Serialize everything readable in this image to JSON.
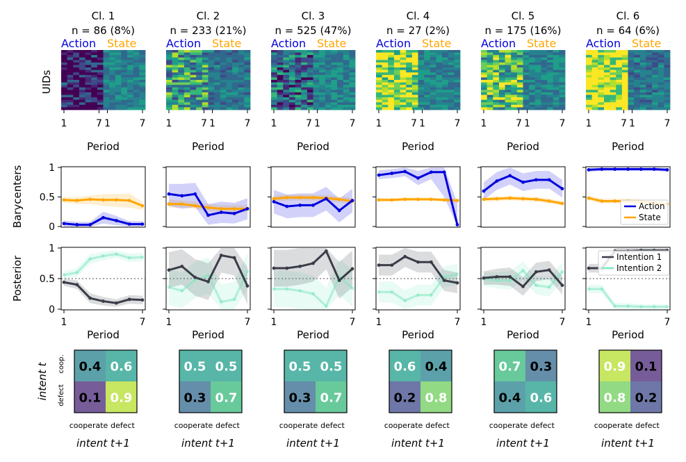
{
  "colors": {
    "action": "#0000dd",
    "state": "#ffa500",
    "intention1": "#3a3d48",
    "intention2": "#7de8c0",
    "viridis": [
      "#440154",
      "#482777",
      "#3e4a89",
      "#31688e",
      "#26828e",
      "#1f9e89",
      "#35b779",
      "#6dcd59",
      "#b4de2c",
      "#fde725"
    ]
  },
  "labels": {
    "uids": "UIDs",
    "barycenters": "Barycenters",
    "posterior": "Posterior",
    "period": "Period",
    "intent_t": "intent t",
    "intent_t1": "intent t+1",
    "row_cooperate": "coop.",
    "row_defect": "defect",
    "col_cooperate": "cooperate",
    "col_defect": "defect",
    "action_header": "Action",
    "state_header": "State"
  },
  "chart_data": {
    "type": "line",
    "clusters": [
      {
        "title": "Cl. 1",
        "n_label": "n = 86 (8%)",
        "heatmap_action_mean": 0.06,
        "heatmap_state_mean": 0.45,
        "barycenters": {
          "action": [
            0.05,
            0.03,
            0.03,
            0.15,
            0.1,
            0.04,
            0.04
          ],
          "action_band": [
            [
              0.0,
              0.1
            ],
            [
              0.0,
              0.08
            ],
            [
              0.0,
              0.08
            ],
            [
              0.05,
              0.25
            ],
            [
              0.02,
              0.18
            ],
            [
              0.0,
              0.09
            ],
            [
              0.0,
              0.09
            ]
          ],
          "state": [
            0.45,
            0.44,
            0.46,
            0.45,
            0.45,
            0.44,
            0.35
          ],
          "state_band": [
            [
              0.4,
              0.5
            ],
            [
              0.38,
              0.5
            ],
            [
              0.38,
              0.52
            ],
            [
              0.35,
              0.55
            ],
            [
              0.33,
              0.55
            ],
            [
              0.32,
              0.56
            ],
            [
              0.28,
              0.42
            ]
          ]
        },
        "posterior": {
          "i1": [
            0.44,
            0.4,
            0.18,
            0.13,
            0.1,
            0.16,
            0.15
          ],
          "i1_band": [
            [
              0.38,
              0.5
            ],
            [
              0.33,
              0.47
            ],
            [
              0.1,
              0.26
            ],
            [
              0.06,
              0.2
            ],
            [
              0.04,
              0.16
            ],
            [
              0.09,
              0.23
            ],
            [
              0.08,
              0.22
            ]
          ],
          "i2": [
            0.56,
            0.6,
            0.82,
            0.87,
            0.9,
            0.84,
            0.85
          ],
          "i2_band": [
            [
              0.5,
              0.62
            ],
            [
              0.53,
              0.67
            ],
            [
              0.74,
              0.9
            ],
            [
              0.8,
              0.94
            ],
            [
              0.84,
              0.96
            ],
            [
              0.77,
              0.91
            ],
            [
              0.78,
              0.92
            ]
          ]
        },
        "matrix": [
          [
            0.4,
            0.6
          ],
          [
            0.1,
            0.9
          ]
        ]
      },
      {
        "title": "Cl. 2",
        "n_label": "n = 233 (21%)",
        "heatmap_action_mean": 0.55,
        "heatmap_state_mean": 0.4,
        "barycenters": {
          "action": [
            0.55,
            0.52,
            0.55,
            0.19,
            0.24,
            0.22,
            0.3
          ],
          "action_band": [
            [
              0.35,
              0.72
            ],
            [
              0.3,
              0.72
            ],
            [
              0.33,
              0.74
            ],
            [
              0.03,
              0.38
            ],
            [
              0.06,
              0.42
            ],
            [
              0.05,
              0.4
            ],
            [
              0.12,
              0.48
            ]
          ],
          "state": [
            0.38,
            0.38,
            0.35,
            0.32,
            0.3,
            0.3,
            0.3
          ],
          "state_band": [
            [
              0.32,
              0.45
            ],
            [
              0.32,
              0.44
            ],
            [
              0.3,
              0.42
            ],
            [
              0.26,
              0.38
            ],
            [
              0.24,
              0.36
            ],
            [
              0.24,
              0.36
            ],
            [
              0.24,
              0.36
            ]
          ]
        },
        "posterior": {
          "i1": [
            0.64,
            0.7,
            0.52,
            0.45,
            0.88,
            0.84,
            0.38
          ],
          "i1_band": [
            [
              0.35,
              0.93
            ],
            [
              0.4,
              0.98
            ],
            [
              0.22,
              0.82
            ],
            [
              0.15,
              0.75
            ],
            [
              0.6,
              1.0
            ],
            [
              0.55,
              1.0
            ],
            [
              0.08,
              0.68
            ]
          ],
          "i2": [
            0.36,
            0.3,
            0.48,
            0.55,
            0.12,
            0.16,
            0.62
          ],
          "i2_band": [
            [
              0.07,
              0.65
            ],
            [
              0.02,
              0.6
            ],
            [
              0.18,
              0.78
            ],
            [
              0.25,
              0.85
            ],
            [
              0.0,
              0.4
            ],
            [
              0.0,
              0.45
            ],
            [
              0.32,
              0.92
            ]
          ]
        },
        "matrix": [
          [
            0.5,
            0.5
          ],
          [
            0.3,
            0.7
          ]
        ]
      },
      {
        "title": "Cl. 3",
        "n_label": "n = 525 (47%)",
        "heatmap_action_mean": 0.35,
        "heatmap_state_mean": 0.45,
        "barycenters": {
          "action": [
            0.42,
            0.34,
            0.36,
            0.36,
            0.47,
            0.27,
            0.44
          ],
          "action_band": [
            [
              0.22,
              0.62
            ],
            [
              0.14,
              0.54
            ],
            [
              0.16,
              0.56
            ],
            [
              0.16,
              0.56
            ],
            [
              0.27,
              0.67
            ],
            [
              0.07,
              0.47
            ],
            [
              0.24,
              0.64
            ]
          ],
          "state": [
            0.47,
            0.49,
            0.49,
            0.49,
            0.48,
            0.46,
            0.43
          ],
          "state_band": [
            [
              0.42,
              0.52
            ],
            [
              0.44,
              0.54
            ],
            [
              0.44,
              0.54
            ],
            [
              0.44,
              0.54
            ],
            [
              0.43,
              0.53
            ],
            [
              0.41,
              0.51
            ],
            [
              0.38,
              0.48
            ]
          ]
        },
        "posterior": {
          "i1": [
            0.67,
            0.67,
            0.7,
            0.75,
            0.95,
            0.47,
            0.66
          ],
          "i1_band": [
            [
              0.37,
              0.97
            ],
            [
              0.37,
              0.97
            ],
            [
              0.4,
              1.0
            ],
            [
              0.45,
              1.0
            ],
            [
              0.65,
              1.0
            ],
            [
              0.17,
              0.77
            ],
            [
              0.36,
              0.96
            ]
          ],
          "i2": [
            0.33,
            0.33,
            0.3,
            0.25,
            0.05,
            0.53,
            0.34
          ],
          "i2_band": [
            [
              0.03,
              0.63
            ],
            [
              0.03,
              0.63
            ],
            [
              0.0,
              0.6
            ],
            [
              0.0,
              0.55
            ],
            [
              0.0,
              0.35
            ],
            [
              0.23,
              0.83
            ],
            [
              0.04,
              0.64
            ]
          ]
        },
        "matrix": [
          [
            0.5,
            0.5
          ],
          [
            0.3,
            0.7
          ]
        ]
      },
      {
        "title": "Cl. 4",
        "n_label": "n = 27 (2%)",
        "heatmap_action_mean": 0.9,
        "heatmap_state_mean": 0.45,
        "barycenters": {
          "action": [
            0.87,
            0.9,
            0.93,
            0.82,
            0.92,
            0.92,
            0.03
          ],
          "action_band": [
            [
              0.8,
              0.95
            ],
            [
              0.82,
              0.97
            ],
            [
              0.85,
              1.0
            ],
            [
              0.7,
              0.94
            ],
            [
              0.8,
              1.0
            ],
            [
              0.5,
              1.0
            ],
            [
              0.0,
              0.4
            ]
          ],
          "state": [
            0.45,
            0.45,
            0.46,
            0.46,
            0.46,
            0.45,
            0.44
          ],
          "state_band": [
            [
              0.42,
              0.48
            ],
            [
              0.42,
              0.48
            ],
            [
              0.43,
              0.49
            ],
            [
              0.43,
              0.49
            ],
            [
              0.43,
              0.49
            ],
            [
              0.42,
              0.48
            ],
            [
              0.41,
              0.47
            ]
          ]
        },
        "posterior": {
          "i1": [
            0.72,
            0.72,
            0.86,
            0.77,
            0.77,
            0.47,
            0.43
          ],
          "i1_band": [
            [
              0.55,
              0.89
            ],
            [
              0.55,
              0.89
            ],
            [
              0.69,
              1.0
            ],
            [
              0.6,
              0.94
            ],
            [
              0.6,
              0.94
            ],
            [
              0.3,
              0.64
            ],
            [
              0.26,
              0.6
            ]
          ],
          "i2": [
            0.28,
            0.28,
            0.14,
            0.23,
            0.23,
            0.53,
            0.57
          ],
          "i2_band": [
            [
              0.11,
              0.45
            ],
            [
              0.11,
              0.45
            ],
            [
              0.0,
              0.31
            ],
            [
              0.06,
              0.4
            ],
            [
              0.06,
              0.4
            ],
            [
              0.36,
              0.7
            ],
            [
              0.4,
              0.74
            ]
          ]
        },
        "matrix": [
          [
            0.6,
            0.4
          ],
          [
            0.2,
            0.8
          ]
        ]
      },
      {
        "title": "Cl. 5",
        "n_label": "n = 175 (16%)",
        "heatmap_action_mean": 0.7,
        "heatmap_state_mean": 0.45,
        "barycenters": {
          "action": [
            0.6,
            0.77,
            0.86,
            0.75,
            0.79,
            0.79,
            0.64
          ],
          "action_band": [
            [
              0.45,
              0.75
            ],
            [
              0.62,
              0.92
            ],
            [
              0.71,
              1.0
            ],
            [
              0.6,
              0.9
            ],
            [
              0.64,
              0.94
            ],
            [
              0.64,
              0.94
            ],
            [
              0.49,
              0.79
            ]
          ],
          "state": [
            0.46,
            0.47,
            0.48,
            0.47,
            0.46,
            0.43,
            0.39
          ],
          "state_band": [
            [
              0.42,
              0.5
            ],
            [
              0.43,
              0.51
            ],
            [
              0.44,
              0.52
            ],
            [
              0.43,
              0.51
            ],
            [
              0.42,
              0.5
            ],
            [
              0.39,
              0.47
            ],
            [
              0.35,
              0.43
            ]
          ]
        },
        "posterior": {
          "i1": [
            0.51,
            0.53,
            0.53,
            0.37,
            0.61,
            0.64,
            0.39
          ],
          "i1_band": [
            [
              0.4,
              0.62
            ],
            [
              0.4,
              0.66
            ],
            [
              0.38,
              0.68
            ],
            [
              0.22,
              0.52
            ],
            [
              0.46,
              0.76
            ],
            [
              0.49,
              0.79
            ],
            [
              0.24,
              0.54
            ]
          ],
          "i2": [
            0.49,
            0.47,
            0.47,
            0.63,
            0.39,
            0.36,
            0.61
          ],
          "i2_band": [
            [
              0.38,
              0.6
            ],
            [
              0.34,
              0.6
            ],
            [
              0.32,
              0.62
            ],
            [
              0.48,
              0.78
            ],
            [
              0.24,
              0.54
            ],
            [
              0.21,
              0.51
            ],
            [
              0.46,
              0.76
            ]
          ]
        },
        "matrix": [
          [
            0.7,
            0.3
          ],
          [
            0.4,
            0.6
          ]
        ]
      },
      {
        "title": "Cl. 6",
        "n_label": "n = 64 (6%)",
        "heatmap_action_mean": 0.95,
        "heatmap_state_mean": 0.4,
        "barycenters": {
          "action": [
            0.96,
            0.97,
            0.97,
            0.97,
            0.97,
            0.97,
            0.96
          ],
          "action_band": [
            [
              0.93,
              0.99
            ],
            [
              0.94,
              1.0
            ],
            [
              0.94,
              1.0
            ],
            [
              0.94,
              1.0
            ],
            [
              0.94,
              1.0
            ],
            [
              0.94,
              1.0
            ],
            [
              0.93,
              0.99
            ]
          ],
          "state": [
            0.48,
            0.43,
            0.43,
            0.43,
            0.42,
            0.4,
            0.38
          ],
          "state_band": [
            [
              0.44,
              0.52
            ],
            [
              0.39,
              0.47
            ],
            [
              0.39,
              0.47
            ],
            [
              0.39,
              0.47
            ],
            [
              0.38,
              0.46
            ],
            [
              0.36,
              0.44
            ],
            [
              0.34,
              0.42
            ]
          ]
        },
        "posterior": {
          "i1": [
            0.67,
            0.67,
            0.95,
            0.95,
            0.96,
            0.96,
            0.96
          ],
          "i1_band": [
            [
              0.6,
              0.74
            ],
            [
              0.6,
              0.74
            ],
            [
              0.9,
              1.0
            ],
            [
              0.9,
              1.0
            ],
            [
              0.92,
              1.0
            ],
            [
              0.92,
              1.0
            ],
            [
              0.92,
              1.0
            ]
          ],
          "i2": [
            0.33,
            0.33,
            0.05,
            0.05,
            0.04,
            0.04,
            0.04
          ],
          "i2_band": [
            [
              0.26,
              0.4
            ],
            [
              0.26,
              0.4
            ],
            [
              0.0,
              0.1
            ],
            [
              0.0,
              0.1
            ],
            [
              0.0,
              0.08
            ],
            [
              0.0,
              0.08
            ],
            [
              0.0,
              0.08
            ]
          ]
        },
        "matrix": [
          [
            0.9,
            0.1
          ],
          [
            0.8,
            0.2
          ]
        ]
      }
    ],
    "x_ticks": [
      1,
      7
    ],
    "barycenter_ylim": [
      0,
      1
    ],
    "barycenter_yticks": [
      "0",
      "0.5",
      "1"
    ],
    "posterior_ylim": [
      0,
      1
    ],
    "posterior_yticks": [
      "0",
      "0.5",
      "1"
    ],
    "posterior_reference_line": 0.5,
    "legend_barycenters": {
      "placement": "lower-right",
      "entries": [
        "Action",
        "State"
      ]
    },
    "legend_posterior": {
      "placement": "top-right",
      "entries": [
        "Intention 1",
        "Intention 2"
      ]
    }
  }
}
